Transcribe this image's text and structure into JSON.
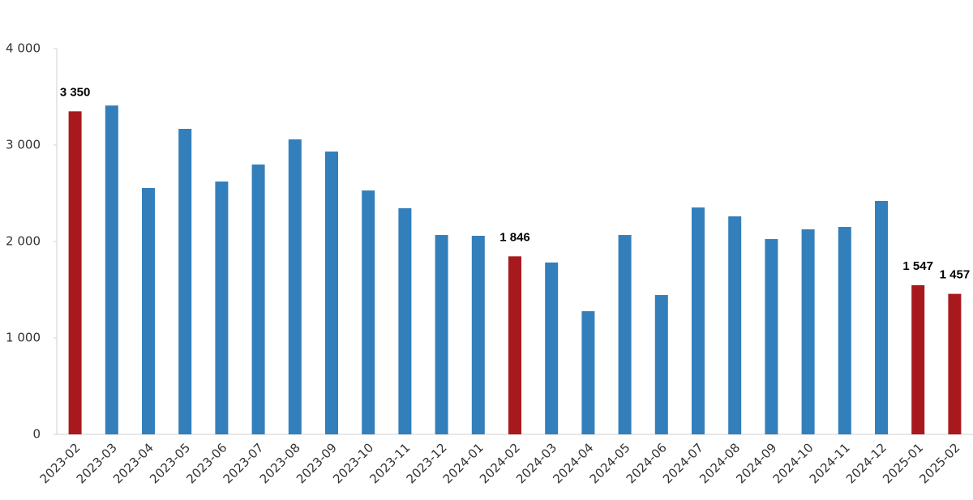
{
  "chart_data": {
    "type": "bar",
    "categories": [
      "2023-02",
      "2023-03",
      "2023-04",
      "2023-05",
      "2023-06",
      "2023-07",
      "2023-08",
      "2023-09",
      "2023-10",
      "2023-11",
      "2023-12",
      "2024-01",
      "2024-02",
      "2024-03",
      "2024-04",
      "2024-05",
      "2024-06",
      "2024-07",
      "2024-08",
      "2024-09",
      "2024-10",
      "2024-11",
      "2024-12",
      "2025-01",
      "2025-02"
    ],
    "values": [
      3350,
      3410,
      2555,
      3168,
      2622,
      2798,
      3059,
      2933,
      2529,
      2345,
      2067,
      2059,
      1846,
      1782,
      1277,
      2067,
      1445,
      2353,
      2261,
      2025,
      2126,
      2151,
      2420,
      1547,
      1457
    ],
    "value_labels": [
      "3 350",
      null,
      null,
      null,
      null,
      null,
      null,
      null,
      null,
      null,
      null,
      null,
      "1 846",
      null,
      null,
      null,
      null,
      null,
      null,
      null,
      null,
      null,
      null,
      "1 547",
      "1 457"
    ],
    "colors": [
      "#a8191d",
      "#337fbb",
      "#337fbb",
      "#337fbb",
      "#337fbb",
      "#337fbb",
      "#337fbb",
      "#337fbb",
      "#337fbb",
      "#337fbb",
      "#337fbb",
      "#337fbb",
      "#a8191d",
      "#337fbb",
      "#337fbb",
      "#337fbb",
      "#337fbb",
      "#337fbb",
      "#337fbb",
      "#337fbb",
      "#337fbb",
      "#337fbb",
      "#337fbb",
      "#a8191d",
      "#a8191d"
    ],
    "ylim": [
      0,
      4000
    ],
    "yticks": [
      0,
      {
        "value": 1000,
        "label": "1 000"
      },
      {
        "value": 2000,
        "label": "2 000"
      },
      {
        "value": 3000,
        "label": "3 000"
      },
      {
        "value": 4000,
        "label": "4 000"
      }
    ],
    "grid": false
  }
}
